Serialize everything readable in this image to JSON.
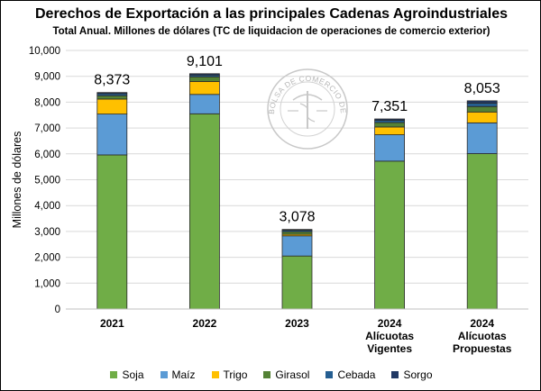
{
  "chart_data": {
    "type": "bar",
    "stacked": true,
    "title": "Derechos de Exportación a las principales Cadenas Agroindustriales",
    "subtitle": "Total Anual. Millones de dólares (TC de liquidacion de operaciones de comercio exterior)",
    "ylabel": "Millones de dólares",
    "ylim": [
      0,
      10000
    ],
    "yticks": [
      "0",
      "1,000",
      "2,000",
      "3,000",
      "4,000",
      "5,000",
      "6,000",
      "7,000",
      "8,000",
      "9,000",
      "10,000"
    ],
    "categories": [
      [
        "2021"
      ],
      [
        "2022"
      ],
      [
        "2023"
      ],
      [
        "2024",
        "Alícuotas",
        "Vigentes"
      ],
      [
        "2024",
        "Alícuotas",
        "Propuestas"
      ]
    ],
    "totals": [
      "8,373",
      "9,101",
      "3,078",
      "7,351",
      "8,053"
    ],
    "series": [
      {
        "name": "Soja",
        "color": "#70AD47",
        "values": [
          5960,
          7550,
          2050,
          5720,
          6010
        ]
      },
      {
        "name": "Maíz",
        "color": "#5B9BD5",
        "values": [
          1580,
          750,
          780,
          1020,
          1190
        ]
      },
      {
        "name": "Trigo",
        "color": "#FFC000",
        "values": [
          580,
          500,
          60,
          300,
          420
        ]
      },
      {
        "name": "Girasol",
        "color": "#548235",
        "values": [
          130,
          180,
          100,
          170,
          210
        ]
      },
      {
        "name": "Cebada",
        "color": "#255E91",
        "values": [
          80,
          70,
          60,
          90,
          130
        ]
      },
      {
        "name": "Sorgo",
        "color": "#203864",
        "values": [
          43,
          51,
          28,
          51,
          93
        ]
      }
    ],
    "grid": true,
    "legend_position": "bottom",
    "watermark_text": "BOLSA DE COMERCIO DE ROSARIO"
  }
}
